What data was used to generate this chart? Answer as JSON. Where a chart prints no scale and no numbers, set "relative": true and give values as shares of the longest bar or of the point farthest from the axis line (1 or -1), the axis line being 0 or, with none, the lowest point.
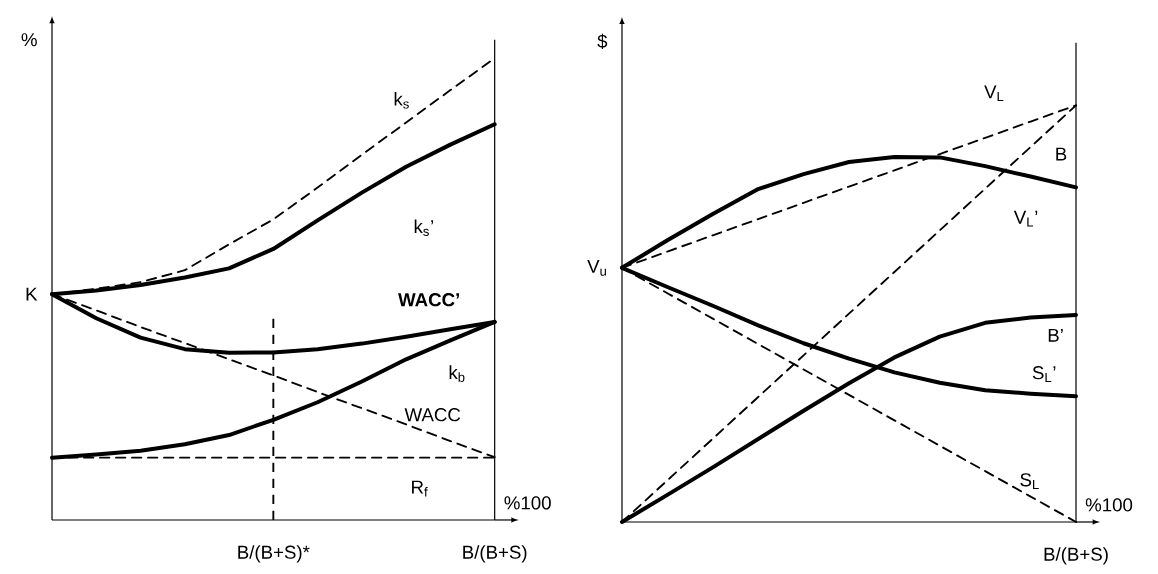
{
  "chart_data": [
    {
      "type": "line",
      "relative": true,
      "ylabel": "%",
      "categories": [
        null,
        null,
        null,
        null,
        null,
        "B/(B+S)*",
        null,
        null,
        null,
        null,
        "B/(B+S)"
      ],
      "series": [
        {
          "name": "k$_{s}$",
          "color": "#000000",
          "line_style": "dashed",
          "values": [
            0.489,
            0.501,
            0.515,
            0.541,
            0.597,
            0.651,
            0.72,
            0.791,
            0.861,
            0.931,
            1.0
          ]
        },
        {
          "name": "k$_{s}$’",
          "color": "#000000",
          "line_style": "solid",
          "values": [
            0.489,
            0.497,
            0.509,
            0.525,
            0.545,
            0.587,
            0.649,
            0.709,
            0.765,
            0.813,
            0.857
          ]
        },
        {
          "name": "WACC’",
          "color": "#000000",
          "line_style": "solid",
          "values": [
            0.489,
            0.437,
            0.395,
            0.37,
            0.362,
            0.363,
            0.37,
            0.382,
            0.397,
            0.413,
            0.429
          ]
        },
        {
          "name": "k$_{b}$",
          "color": "#000000",
          "line_style": "solid",
          "values": [
            0.135,
            0.142,
            0.15,
            0.164,
            0.184,
            0.217,
            0.255,
            0.3,
            0.348,
            0.389,
            0.429
          ]
        },
        {
          "name": "WACC",
          "color": "#000000",
          "line_style": "dashed",
          "values": [
            0.489,
            0.454,
            0.418,
            0.383,
            0.348,
            0.313,
            0.277,
            0.242,
            0.207,
            0.171,
            0.136
          ]
        },
        {
          "name": "R$_{f}$",
          "color": "#000000",
          "line_style": "dashed",
          "values": [
            0.135,
            0.135,
            0.135,
            0.135,
            0.135,
            0.135,
            0.135,
            0.135,
            0.135,
            0.135,
            0.135
          ]
        }
      ],
      "ref_lines": [
        {
          "axis": "x",
          "value": "B/(B+S)*",
          "line_style": "dashed"
        }
      ],
      "annotations": [
        "K",
        "%100"
      ]
    },
    {
      "type": "line",
      "relative": true,
      "ylabel": "$",
      "xlabel": "B/(B+S)",
      "categories": [
        null,
        null,
        null,
        null,
        null,
        null,
        null,
        null,
        null,
        null,
        null
      ],
      "series": [
        {
          "name": "V$_{L}$",
          "color": "#000000",
          "line_style": "dashed",
          "values": [
            0.61,
            0.649,
            0.688,
            0.727,
            0.766,
            0.805,
            0.844,
            0.883,
            0.922,
            0.961,
            1.0
          ]
        },
        {
          "name": "B",
          "color": "#000000",
          "line_style": "dashed",
          "values": [
            0,
            0.1,
            0.2,
            0.3,
            0.4,
            0.5,
            0.6,
            0.7,
            0.8,
            0.9,
            1.0
          ]
        },
        {
          "name": "V$_{L}$’",
          "color": "#000000",
          "line_style": "solid",
          "values": [
            0.61,
            0.676,
            0.739,
            0.799,
            0.835,
            0.864,
            0.876,
            0.875,
            0.854,
            0.829,
            0.803
          ]
        },
        {
          "name": "B’",
          "color": "#000000",
          "line_style": "solid",
          "values": [
            0,
            0.065,
            0.131,
            0.199,
            0.267,
            0.333,
            0.395,
            0.445,
            0.478,
            0.491,
            0.497
          ]
        },
        {
          "name": "S$_{L}$’",
          "color": "#000000",
          "line_style": "solid",
          "values": [
            0.61,
            0.564,
            0.519,
            0.472,
            0.429,
            0.392,
            0.359,
            0.334,
            0.316,
            0.308,
            0.302
          ]
        },
        {
          "name": "S$_{L}$",
          "color": "#000000",
          "line_style": "dashed",
          "values": [
            0.61,
            0.549,
            0.488,
            0.427,
            0.366,
            0.305,
            0.244,
            0.183,
            0.122,
            0.061,
            0
          ]
        }
      ],
      "annotations": [
        "V$_{u}$",
        "%100"
      ]
    }
  ]
}
